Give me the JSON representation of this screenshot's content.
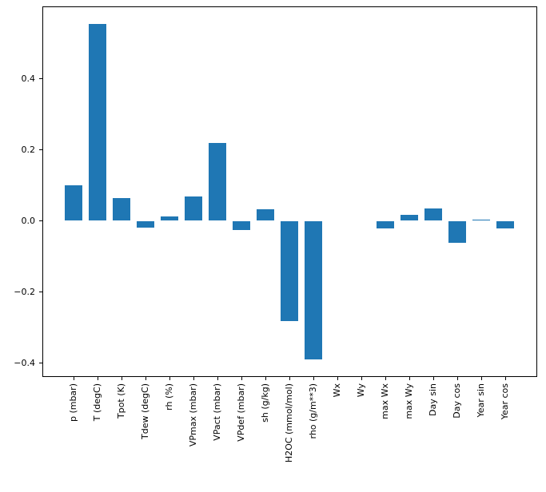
{
  "colors": {
    "bar": "#1f77b4",
    "spine": "#000000",
    "background": "#ffffff",
    "tick_label": "#000000"
  },
  "chart_data": {
    "type": "bar",
    "title": "",
    "xlabel": "",
    "ylabel": "",
    "grid": false,
    "legend": "none",
    "categories": [
      "p (mbar)",
      "T (degC)",
      "Tpot (K)",
      "Tdew (degC)",
      "rh (%)",
      "VPmax (mbar)",
      "VPact (mbar)",
      "VPdef (mbar)",
      "sh (g/kg)",
      "H2OC (mmol/mol)",
      "rho (g/m**3)",
      "Wx",
      "Wy",
      "max Wx",
      "max Wy",
      "Day sin",
      "Day cos",
      "Year sin",
      "Year cos"
    ],
    "values": [
      0.099,
      0.553,
      0.063,
      -0.02,
      0.012,
      0.068,
      0.219,
      -0.026,
      0.033,
      -0.282,
      -0.389,
      0.0,
      0.0,
      -0.022,
      0.016,
      0.035,
      -0.061,
      0.003,
      -0.022
    ],
    "x_axis": {
      "tick_rotation_deg": 90
    },
    "y_axis": {
      "tick_labels": [
        "0.4",
        "0.2",
        "0.0",
        "−0.2",
        "−0.4"
      ],
      "tick_values": [
        0.4,
        0.2,
        0.0,
        -0.2,
        -0.4
      ],
      "ylim": [
        -0.44,
        0.6
      ]
    }
  }
}
